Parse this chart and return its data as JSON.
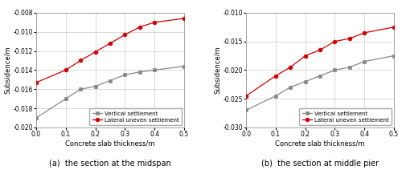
{
  "x": [
    0.0,
    0.1,
    0.15,
    0.2,
    0.25,
    0.3,
    0.35,
    0.4,
    0.5
  ],
  "subplot_a": {
    "vertical": [
      -0.019,
      -0.017,
      -0.016,
      -0.0157,
      -0.0151,
      -0.0145,
      -0.0142,
      -0.014,
      -0.0136
    ],
    "lateral": [
      -0.0153,
      -0.014,
      -0.013,
      -0.0121,
      -0.0112,
      -0.0103,
      -0.0095,
      -0.009,
      -0.0086
    ],
    "ylim": [
      -0.02,
      -0.008
    ],
    "yticks": [
      -0.02,
      -0.018,
      -0.016,
      -0.014,
      -0.012,
      -0.01,
      -0.008
    ],
    "ylabel": "Subsidence/m",
    "xlabel": "Concrete slab thickness/m",
    "caption": "(a)  the section at the midspan"
  },
  "subplot_b": {
    "vertical": [
      -0.027,
      -0.0245,
      -0.023,
      -0.022,
      -0.021,
      -0.02,
      -0.0195,
      -0.0185,
      -0.0175
    ],
    "lateral": [
      -0.0245,
      -0.021,
      -0.0195,
      -0.0175,
      -0.0165,
      -0.015,
      -0.0145,
      -0.0135,
      -0.0125
    ],
    "ylim": [
      -0.03,
      -0.01
    ],
    "yticks": [
      -0.03,
      -0.025,
      -0.02,
      -0.015,
      -0.01
    ],
    "ylabel": "Subsidence/m",
    "xlabel": "Concrete slab thickness/m",
    "caption": "(b)  the section at middle pier"
  },
  "vertical_color": "#888888",
  "lateral_color": "#cc0000",
  "background_color": "#ffffff",
  "grid_color": "#cccccc",
  "legend_vertical": "Vertical settlement",
  "legend_lateral": "Lateral uneven settlement",
  "marker_vertical": "s",
  "marker_lateral": "o",
  "fontsize_label": 6,
  "fontsize_tick": 5.5,
  "fontsize_legend": 5,
  "fontsize_caption": 7
}
